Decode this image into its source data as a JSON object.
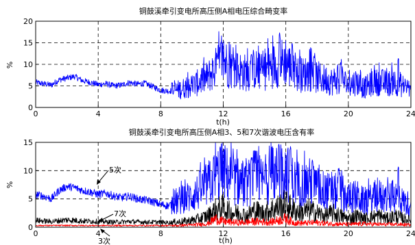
{
  "chart_data": [
    {
      "type": "line",
      "title": "铜鼓溪牵引变电所高压侧A相电压综合畸变率",
      "xlabel": "t(h)",
      "ylabel": "%",
      "xlim": [
        0,
        24
      ],
      "ylim": [
        0,
        20
      ],
      "xticks": [
        0,
        4,
        8,
        12,
        16,
        20,
        24
      ],
      "yticks": [
        0,
        5,
        10,
        15,
        20
      ],
      "grid": "dashed",
      "series": [
        {
          "color": "#0000ff",
          "x": [
            0,
            0.5,
            1,
            1.5,
            2,
            2.5,
            3,
            3.5,
            4,
            4.5,
            5,
            5.5,
            6,
            6.5,
            7,
            7.5,
            8,
            8.5,
            9,
            9.5,
            10,
            10.5,
            11,
            11.5,
            12,
            12.5,
            13,
            13.5,
            14,
            14.5,
            15,
            15.5,
            16,
            16.5,
            17,
            17.5,
            18,
            18.5,
            19,
            19.5,
            20,
            20.5,
            21,
            21.5,
            22,
            22.5,
            23,
            23.5,
            24
          ],
          "y": [
            5.8,
            5.5,
            5.2,
            6.4,
            6.8,
            7.2,
            6.2,
            5.8,
            5.3,
            5.5,
            5.0,
            5.2,
            5.8,
            5.4,
            5.6,
            4.8,
            4.0,
            3.8,
            4.0,
            4.5,
            5.0,
            6.0,
            7.0,
            9.0,
            11.0,
            9.0,
            8.5,
            8.0,
            9.0,
            8.0,
            9.5,
            10.0,
            11.0,
            8.0,
            7.5,
            8.0,
            7.0,
            6.5,
            6.0,
            7.0,
            5.0,
            6.0,
            4.5,
            5.5,
            6.0,
            5.5,
            6.0,
            5.0,
            4.5
          ],
          "peaks": [
            {
              "x": 11.85,
              "y": 15.2
            },
            {
              "x": 15.6,
              "y": 17.3
            },
            {
              "x": 16.4,
              "y": 15.0
            },
            {
              "x": 13.8,
              "y": 12.5
            },
            {
              "x": 17.8,
              "y": 12.0
            },
            {
              "x": 19.5,
              "y": 10.5
            },
            {
              "x": 23.2,
              "y": 11.5
            }
          ]
        }
      ]
    },
    {
      "type": "line",
      "title": "铜鼓溪牵引变电所高压侧A相3、5和7次谐波电压含有率",
      "xlabel": "t(h)",
      "ylabel": "%",
      "xlim": [
        0,
        24
      ],
      "ylim": [
        0,
        15
      ],
      "xticks": [
        0,
        4,
        8,
        12,
        16,
        20,
        24
      ],
      "yticks": [
        0,
        5,
        10,
        15
      ],
      "grid": "dashed",
      "annotations": [
        "5次",
        "7次",
        "3次"
      ],
      "series": [
        {
          "label": "5次",
          "color": "#0000ff",
          "x": [
            0,
            0.5,
            1,
            1.5,
            2,
            2.5,
            3,
            3.5,
            4,
            4.5,
            5,
            5.5,
            6,
            6.5,
            7,
            7.5,
            8,
            8.5,
            9,
            9.5,
            10,
            10.5,
            11,
            11.5,
            12,
            12.5,
            13,
            13.5,
            14,
            14.5,
            15,
            15.5,
            16,
            16.5,
            17,
            17.5,
            18,
            18.5,
            19,
            19.5,
            20,
            20.5,
            21,
            21.5,
            22,
            22.5,
            23,
            23.5,
            24
          ],
          "y": [
            5.8,
            5.5,
            5.0,
            6.5,
            7.2,
            7.0,
            6.5,
            6.2,
            5.8,
            6.0,
            5.5,
            5.2,
            5.5,
            5.0,
            4.8,
            4.5,
            4.0,
            3.8,
            4.5,
            5.0,
            5.5,
            6.5,
            7.5,
            9.0,
            10.0,
            8.5,
            8.0,
            7.5,
            9.0,
            8.0,
            9.0,
            9.5,
            10.0,
            8.0,
            7.5,
            8.0,
            7.0,
            6.5,
            6.0,
            6.5,
            5.0,
            5.5,
            4.5,
            5.0,
            5.5,
            5.0,
            5.5,
            4.5,
            4.0
          ],
          "peaks": [
            {
              "x": 11.8,
              "y": 14.3
            },
            {
              "x": 15.55,
              "y": 14.8
            },
            {
              "x": 16.3,
              "y": 14.3
            },
            {
              "x": 13.8,
              "y": 12.5
            },
            {
              "x": 17.7,
              "y": 12.0
            },
            {
              "x": 19.4,
              "y": 10.5
            },
            {
              "x": 23.2,
              "y": 10.8
            }
          ]
        },
        {
          "label": "7次",
          "color": "#000000",
          "x": [
            0,
            1,
            2,
            3,
            4,
            5,
            6,
            7,
            8,
            8.5,
            9,
            9.5,
            10,
            10.5,
            11,
            11.5,
            12,
            12.5,
            13,
            13.5,
            14,
            14.5,
            15,
            15.5,
            16,
            16.5,
            17,
            17.5,
            18,
            18.5,
            19,
            19.5,
            20,
            20.5,
            21,
            21.5,
            22,
            22.5,
            23,
            23.5,
            24
          ],
          "y": [
            1.2,
            1.0,
            1.3,
            1.1,
            1.0,
            0.9,
            1.0,
            0.9,
            0.9,
            0.8,
            0.9,
            1.0,
            1.2,
            1.5,
            2.0,
            3.0,
            3.5,
            2.5,
            2.5,
            2.0,
            3.0,
            2.5,
            3.0,
            3.5,
            4.0,
            3.0,
            2.5,
            3.0,
            2.5,
            2.0,
            2.5,
            2.0,
            1.5,
            2.0,
            1.5,
            1.8,
            2.0,
            1.5,
            2.0,
            1.5,
            1.2
          ]
        },
        {
          "label": "3次",
          "color": "#ff0000",
          "x": [
            0,
            2,
            4,
            6,
            8,
            9,
            10,
            11,
            11.5,
            12,
            13,
            14,
            15,
            16,
            16.5,
            17,
            18,
            19,
            20,
            21,
            22,
            23,
            24
          ],
          "y": [
            0.3,
            0.3,
            0.3,
            0.3,
            0.3,
            0.3,
            0.4,
            0.6,
            1.5,
            1.0,
            0.8,
            1.0,
            0.9,
            1.5,
            0.8,
            0.7,
            0.8,
            0.6,
            0.5,
            0.6,
            0.5,
            0.5,
            0.4
          ]
        }
      ]
    }
  ]
}
